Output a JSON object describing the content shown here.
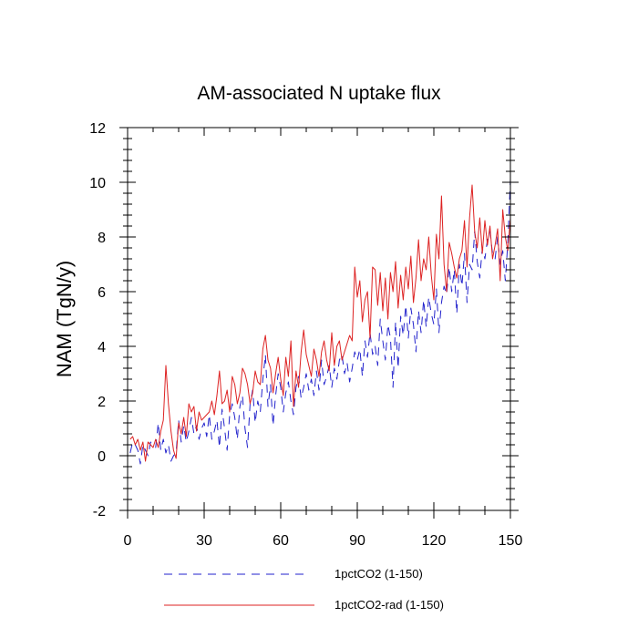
{
  "chart_data": {
    "type": "line",
    "title": "AM-associated N uptake flux",
    "xlabel": "",
    "ylabel": "NAM  (TgN/y)",
    "xlim": [
      0,
      150
    ],
    "ylim": [
      -2,
      12
    ],
    "xticks": [
      0,
      30,
      60,
      90,
      120,
      150
    ],
    "yticks": [
      -2,
      0,
      2,
      4,
      6,
      8,
      10,
      12
    ],
    "grid": false,
    "legend_position": "bottom",
    "series": [
      {
        "name": "1pctCO2 (1-150)",
        "color": "#2222cc",
        "dash": "dashed",
        "x": [
          1,
          2,
          3,
          4,
          5,
          6,
          7,
          8,
          9,
          10,
          11,
          12,
          13,
          14,
          15,
          16,
          17,
          18,
          19,
          20,
          21,
          22,
          23,
          24,
          25,
          26,
          27,
          28,
          29,
          30,
          31,
          32,
          33,
          34,
          35,
          36,
          37,
          38,
          39,
          40,
          41,
          42,
          43,
          44,
          45,
          46,
          47,
          48,
          49,
          50,
          51,
          52,
          53,
          54,
          55,
          56,
          57,
          58,
          59,
          60,
          61,
          62,
          63,
          64,
          65,
          66,
          67,
          68,
          69,
          70,
          71,
          72,
          73,
          74,
          75,
          76,
          77,
          78,
          79,
          80,
          81,
          82,
          83,
          84,
          85,
          86,
          87,
          88,
          89,
          90,
          91,
          92,
          93,
          94,
          95,
          96,
          97,
          98,
          99,
          100,
          101,
          102,
          103,
          104,
          105,
          106,
          107,
          108,
          109,
          110,
          111,
          112,
          113,
          114,
          115,
          116,
          117,
          118,
          119,
          120,
          121,
          122,
          123,
          124,
          125,
          126,
          127,
          128,
          129,
          130,
          131,
          132,
          133,
          134,
          135,
          136,
          137,
          138,
          139,
          140,
          141,
          142,
          143,
          144,
          145,
          146,
          147,
          148,
          149,
          150
        ],
        "y": [
          0.1,
          0.5,
          0.4,
          0.2,
          -0.3,
          0.4,
          0.2,
          0.0,
          0.5,
          0.4,
          0.3,
          1.2,
          0.2,
          0.6,
          0.1,
          0.4,
          -0.2,
          0.0,
          0.1,
          1.3,
          0.5,
          1.1,
          0.5,
          0.9,
          1.4,
          0.8,
          1.1,
          0.6,
          1.0,
          1.2,
          0.7,
          1.5,
          0.6,
          0.9,
          1.3,
          0.3,
          1.7,
          1.0,
          0.2,
          1.5,
          1.9,
          1.4,
          0.6,
          1.8,
          2.2,
          1.0,
          0.3,
          1.9,
          2.4,
          1.2,
          2.0,
          1.6,
          2.8,
          3.7,
          1.8,
          2.6,
          1.1,
          2.2,
          3.0,
          2.5,
          1.6,
          2.3,
          2.7,
          2.0,
          1.5,
          2.5,
          2.9,
          2.1,
          2.5,
          3.0,
          2.4,
          2.8,
          2.2,
          3.1,
          2.4,
          3.5,
          2.6,
          2.9,
          3.3,
          2.5,
          3.2,
          2.8,
          3.5,
          3.7,
          3.0,
          3.4,
          2.7,
          3.2,
          3.8,
          3.5,
          3.9,
          2.9,
          4.2,
          3.6,
          4.5,
          3.7,
          4.0,
          3.3,
          5.0,
          4.2,
          3.5,
          4.8,
          4.3,
          2.5,
          4.9,
          3.2,
          5.1,
          4.4,
          5.5,
          4.3,
          5.4,
          4.8,
          3.8,
          5.3,
          4.5,
          5.7,
          4.7,
          5.8,
          5.2,
          4.8,
          6.1,
          4.5,
          5.6,
          6.2,
          5.9,
          6.9,
          6.0,
          6.8,
          5.2,
          7.0,
          6.2,
          7.4,
          5.6,
          7.0,
          6.8,
          8.2,
          7.1,
          6.5,
          7.6,
          7.2,
          7.9,
          8.2,
          7.4,
          7.2,
          8.0,
          7.0,
          7.5,
          6.4,
          7.8,
          10.1
        ]
      },
      {
        "name": "1pctCO2-rad (1-150)",
        "color": "#dd2222",
        "dash": "solid",
        "x": [
          1,
          2,
          3,
          4,
          5,
          6,
          7,
          8,
          9,
          10,
          11,
          12,
          13,
          14,
          15,
          16,
          17,
          18,
          19,
          20,
          21,
          22,
          23,
          24,
          25,
          26,
          27,
          28,
          29,
          30,
          31,
          32,
          33,
          34,
          35,
          36,
          37,
          38,
          39,
          40,
          41,
          42,
          43,
          44,
          45,
          46,
          47,
          48,
          49,
          50,
          51,
          52,
          53,
          54,
          55,
          56,
          57,
          58,
          59,
          60,
          61,
          62,
          63,
          64,
          65,
          66,
          67,
          68,
          69,
          70,
          71,
          72,
          73,
          74,
          75,
          76,
          77,
          78,
          79,
          80,
          81,
          82,
          83,
          84,
          85,
          86,
          87,
          88,
          89,
          90,
          91,
          92,
          93,
          94,
          95,
          96,
          97,
          98,
          99,
          100,
          101,
          102,
          103,
          104,
          105,
          106,
          107,
          108,
          109,
          110,
          111,
          112,
          113,
          114,
          115,
          116,
          117,
          118,
          119,
          120,
          121,
          122,
          123,
          124,
          125,
          126,
          127,
          128,
          129,
          130,
          131,
          132,
          133,
          134,
          135,
          136,
          137,
          138,
          139,
          140,
          141,
          142,
          143,
          144,
          145,
          146,
          147,
          148,
          149,
          150
        ],
        "y": [
          0.6,
          0.7,
          0.4,
          0.6,
          0.2,
          0.5,
          -0.2,
          0.5,
          0.4,
          0.3,
          0.6,
          0.3,
          0.9,
          1.3,
          3.3,
          1.9,
          0.9,
          0.2,
          -0.1,
          1.2,
          0.8,
          1.4,
          0.7,
          1.9,
          1.6,
          1.8,
          0.9,
          1.6,
          1.3,
          1.4,
          1.5,
          1.6,
          2.0,
          1.5,
          2.2,
          3.1,
          1.9,
          2.0,
          2.4,
          1.6,
          2.9,
          2.6,
          1.9,
          2.3,
          3.2,
          3.0,
          2.6,
          1.9,
          2.3,
          3.1,
          2.7,
          2.6,
          3.9,
          4.4,
          3.5,
          3.2,
          2.3,
          3.0,
          3.6,
          2.8,
          2.2,
          3.6,
          2.9,
          4.2,
          1.8,
          3.1,
          2.5,
          3.8,
          4.6,
          3.7,
          3.3,
          2.9,
          3.9,
          3.5,
          2.9,
          3.8,
          4.2,
          3.5,
          3.1,
          4.5,
          3.3,
          4.0,
          4.2,
          3.5,
          3.8,
          4.1,
          4.4,
          4.2,
          6.9,
          5.8,
          6.4,
          4.9,
          5.7,
          6.0,
          4.3,
          6.9,
          6.8,
          5.5,
          6.7,
          5.3,
          6.5,
          5.0,
          6.7,
          6.0,
          7.1,
          5.4,
          6.6,
          5.7,
          6.9,
          6.1,
          7.3,
          5.6,
          6.5,
          7.9,
          6.4,
          7.2,
          6.8,
          8.0,
          6.6,
          5.7,
          8.1,
          7.2,
          9.5,
          7.0,
          6.0,
          7.8,
          7.4,
          6.9,
          6.5,
          7.2,
          7.5,
          8.6,
          6.9,
          8.7,
          9.9,
          8.2,
          7.6,
          8.7,
          7.4,
          8.6,
          7.7,
          8.4,
          7.2,
          7.7,
          8.3,
          6.4,
          9.0,
          8.0,
          7.5,
          8.7
        ]
      }
    ]
  }
}
